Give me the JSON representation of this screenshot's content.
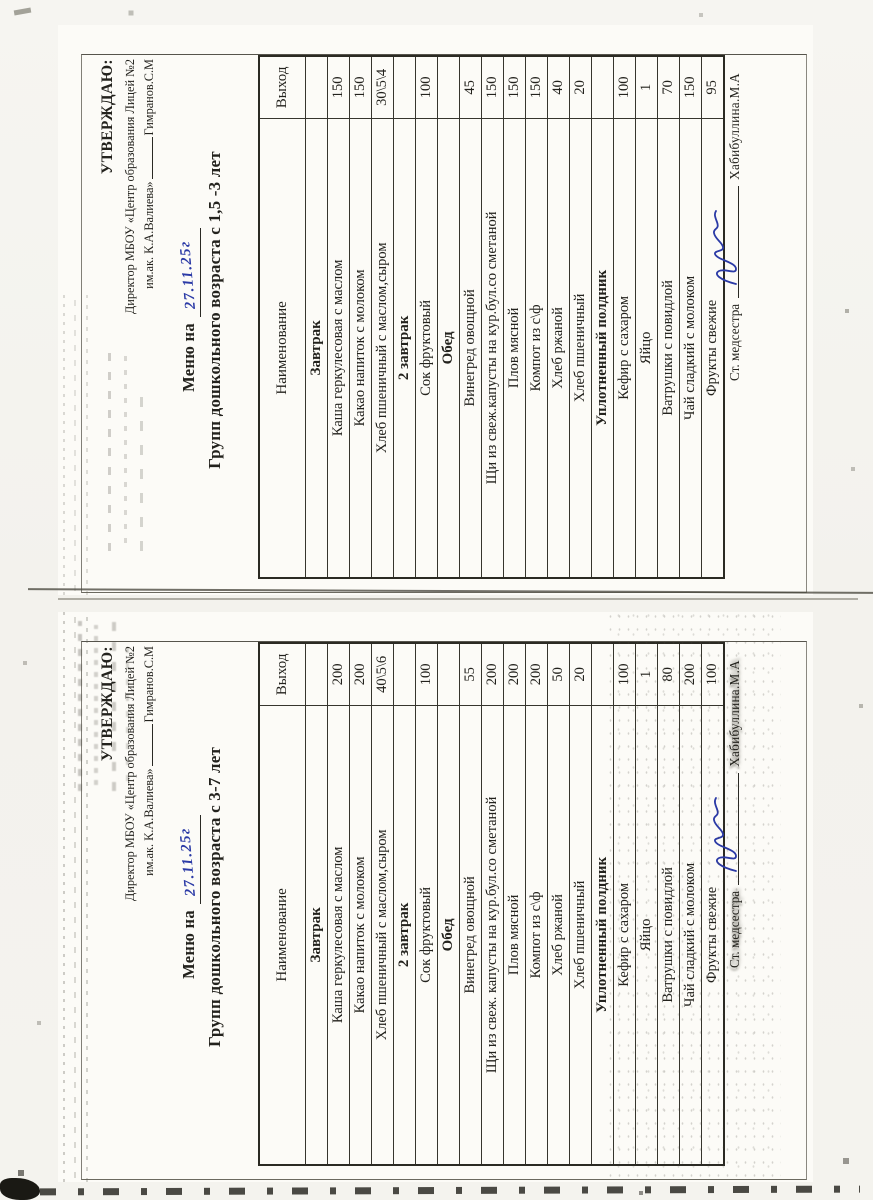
{
  "document": {
    "paper_color": "#fcfbf7",
    "background_color": "#f3f2ed",
    "ink_color": "#23221d",
    "pen_blue": "#2b3aa6"
  },
  "menus": [
    {
      "approve": {
        "title": "УТВЕРЖДАЮ:",
        "line1": "Директор МБОУ «Центр образования Лицей №2",
        "line2_name": "им.ак. К.А.Валиева»",
        "line2_sign": "Гимранов.С.М"
      },
      "menu_prefix": "Меню на",
      "menu_date": "27.11.25г",
      "group_title": "Групп дошкольного возраста с 1,5 -3 лет",
      "table": {
        "col_name": "Наименование",
        "col_out": "Выход",
        "rows": [
          {
            "section": true,
            "name": "Завтрак",
            "out": ""
          },
          {
            "name": "Каша геркулесовая с маслом",
            "out": "150"
          },
          {
            "name": "Какао напиток с молоком",
            "out": "150"
          },
          {
            "name": "Хлеб пшеничный с маслом,сыром",
            "out": "30\\5\\4"
          },
          {
            "section": true,
            "name": "2 завтрак",
            "out": ""
          },
          {
            "name": "Сок фруктовый",
            "out": "100"
          },
          {
            "section": true,
            "name": "Обед",
            "out": ""
          },
          {
            "name": "Винегред овощной",
            "out": "45"
          },
          {
            "name": "Щи из свеж.капусты на кур.бул.со сметаной",
            "out": "150"
          },
          {
            "name": "Плов мясной",
            "out": "150"
          },
          {
            "name": "Компот из с\\ф",
            "out": "150"
          },
          {
            "name": "Хлеб ржаной",
            "out": "40"
          },
          {
            "name": "Хлеб пшеничный",
            "out": "20"
          },
          {
            "section": true,
            "name": "Уплотненный полдник",
            "out": ""
          },
          {
            "name": "Кефир с сахаром",
            "out": "100"
          },
          {
            "name": "Яйцо",
            "out": "1"
          },
          {
            "name": "Ватрушки с повидлой",
            "out": "70"
          },
          {
            "name": "Чай сладкий с молоком",
            "out": "150"
          },
          {
            "name": "Фрукты свежие",
            "out": "95"
          }
        ]
      },
      "footer": {
        "position": "Ст. медсестра",
        "name": "Хабибуллина.М.А"
      }
    },
    {
      "approve": {
        "title": "УТВЕРЖДАЮ:",
        "line1": "Директор МБОУ «Центр образования Лицей №2",
        "line2_name": "им.ак. К.А.Валиева»",
        "line2_sign": "Гимранов.С.М"
      },
      "menu_prefix": "Меню на",
      "menu_date": "27.11.25г",
      "group_title": "Групп дошкольного возраста с 3-7 лет",
      "table": {
        "col_name": "Наименование",
        "col_out": "Выход",
        "rows": [
          {
            "section": true,
            "name": "Завтрак",
            "out": ""
          },
          {
            "name": "Каша геркулесовая с маслом",
            "out": "200"
          },
          {
            "name": "Какао напиток с молоком",
            "out": "200"
          },
          {
            "name": "Хлеб пшеничный с маслом,сыром",
            "out": "40\\5\\6"
          },
          {
            "section": true,
            "name": "2 завтрак",
            "out": ""
          },
          {
            "name": "Сок фруктовый",
            "out": "100"
          },
          {
            "section": true,
            "name": "Обед",
            "out": ""
          },
          {
            "name": "Винегред овощной",
            "out": "55"
          },
          {
            "name": "Щи из свеж. капусты на кур.бул.со сметаной",
            "out": "200"
          },
          {
            "name": "Плов мясной",
            "out": "200"
          },
          {
            "name": "Компот из с\\ф",
            "out": "200"
          },
          {
            "name": "Хлеб ржаной",
            "out": "50"
          },
          {
            "name": "Хлеб пшеничный",
            "out": "20"
          },
          {
            "section": true,
            "name": "Уплотненный полдник",
            "out": ""
          },
          {
            "name": "Кефир с сахаром",
            "out": "100"
          },
          {
            "name": "Яйцо",
            "out": "1"
          },
          {
            "name": "Ватрушки с повидлой",
            "out": "80"
          },
          {
            "name": "Чай сладкий с молоком",
            "out": "200"
          },
          {
            "name": "Фрукты свежие",
            "out": "100"
          }
        ]
      },
      "footer": {
        "position": "Ст. медсестра",
        "name": "Хабибуллина.М.А"
      }
    }
  ]
}
